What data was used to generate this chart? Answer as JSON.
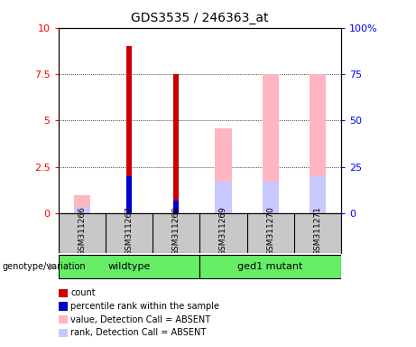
{
  "title": "GDS3535 / 246363_at",
  "samples": [
    "GSM311266",
    "GSM311267",
    "GSM311268",
    "GSM311269",
    "GSM311270",
    "GSM311271"
  ],
  "count_values": [
    null,
    9.0,
    7.5,
    null,
    null,
    null
  ],
  "percentile_values": [
    null,
    2.0,
    0.7,
    null,
    null,
    null
  ],
  "absent_value": [
    1.0,
    null,
    null,
    4.6,
    7.5,
    7.5
  ],
  "absent_rank": [
    0.35,
    null,
    null,
    1.7,
    1.7,
    2.0
  ],
  "ylim_left": [
    0,
    10
  ],
  "ylim_right": [
    0,
    100
  ],
  "left_ticks": [
    0,
    2.5,
    5,
    7.5,
    10
  ],
  "right_ticks": [
    0,
    25,
    50,
    75,
    100
  ],
  "left_tick_labels": [
    "0",
    "2.5",
    "5",
    "7.5",
    "10"
  ],
  "right_tick_labels": [
    "0",
    "25",
    "50",
    "75",
    "100%"
  ],
  "count_color": "#CC0000",
  "percentile_color": "#0000CC",
  "absent_value_color": "#FFB6C1",
  "absent_rank_color": "#C8C8FF",
  "bg_color": "#C8C8C8",
  "wildtype_color": "#66EE66",
  "mutant_color": "#66EE66",
  "legend_items": [
    {
      "label": "count",
      "color": "#CC0000"
    },
    {
      "label": "percentile rank within the sample",
      "color": "#0000CC"
    },
    {
      "label": "value, Detection Call = ABSENT",
      "color": "#FFB6C1"
    },
    {
      "label": "rank, Detection Call = ABSENT",
      "color": "#C8C8FF"
    }
  ]
}
